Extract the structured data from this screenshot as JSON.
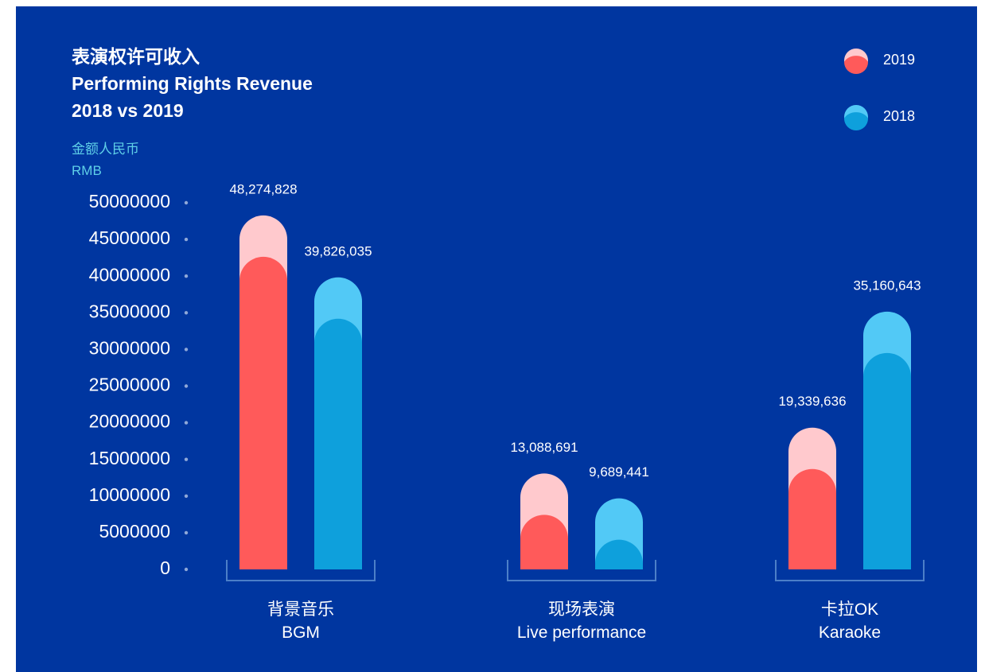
{
  "chart_data": {
    "type": "bar",
    "title": "表演权许可收入\nPerforming Rights Revenue\n2018 vs 2019",
    "y_axis_label": "金额人民币\nRMB",
    "categories": [
      "背景音乐\nBGM",
      "现场表演\nLive performance",
      "卡拉OK\nKaraoke"
    ],
    "series": [
      {
        "name": "2019",
        "color": "#ff5a5a",
        "top_color": "#ffc9cd",
        "values": [
          48274828,
          13088691,
          19339636
        ],
        "value_labels": [
          "48,274,828",
          "13,088,691",
          "19,339,636"
        ]
      },
      {
        "name": "2018",
        "color": "#0ea0dc",
        "top_color": "#52c9f6",
        "values": [
          39826035,
          9689441,
          35160643
        ],
        "value_labels": [
          "39,826,035",
          "9,689,441",
          "35,160,643"
        ]
      }
    ],
    "ylim": [
      0,
      50000000
    ],
    "yticks": [
      0,
      5000000,
      10000000,
      15000000,
      20000000,
      25000000,
      30000000,
      35000000,
      40000000,
      45000000,
      50000000
    ],
    "legend": "top-right"
  }
}
